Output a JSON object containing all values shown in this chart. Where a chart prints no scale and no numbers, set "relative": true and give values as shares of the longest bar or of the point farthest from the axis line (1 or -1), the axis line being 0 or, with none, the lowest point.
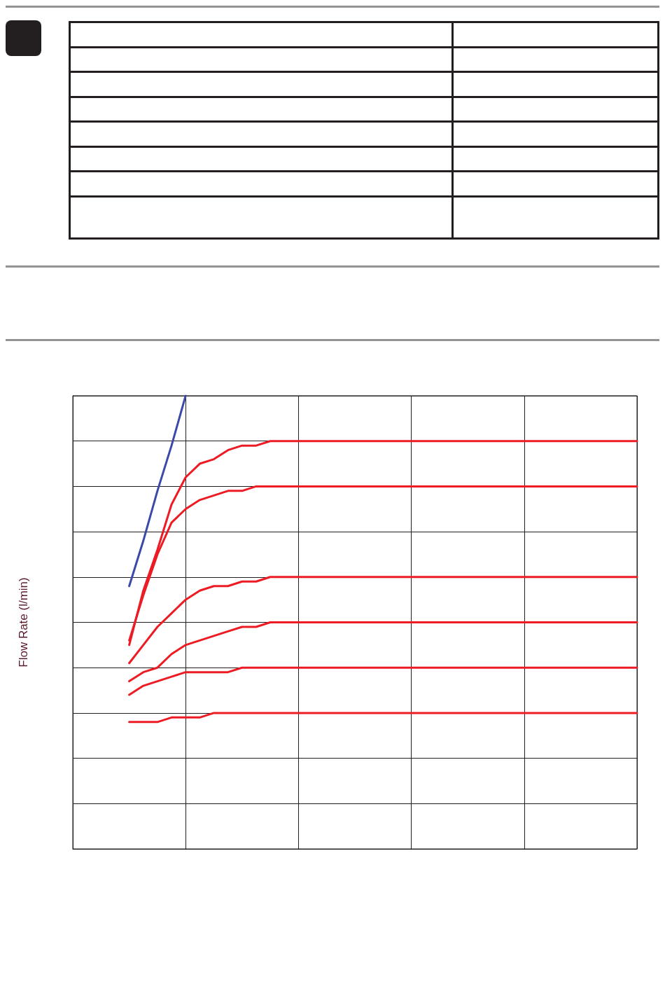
{
  "chart_data": {
    "type": "line",
    "ylabel": "Flow Rate (l/min)",
    "relative": true,
    "grid": true,
    "marker": "none",
    "line_style": "solid",
    "categories": [
      null,
      null,
      null,
      null,
      null,
      null,
      null,
      null,
      null,
      null,
      null,
      null,
      null,
      null,
      null,
      null,
      null,
      null,
      null,
      null,
      null,
      null,
      null,
      null,
      null,
      null,
      null,
      null,
      null,
      null,
      null,
      null,
      null,
      null,
      null,
      null,
      null,
      null,
      null,
      null,
      null
    ],
    "series": [
      {
        "color": "#3b4aa8",
        "values": [
          null,
          null,
          null,
          null,
          0.58,
          0.68,
          0.79,
          0.89,
          1,
          null,
          null,
          null,
          null,
          null,
          null,
          null,
          null,
          null,
          null,
          null,
          null,
          null,
          null,
          null,
          null,
          null,
          null,
          null,
          null,
          null,
          null,
          null,
          null,
          null,
          null,
          null,
          null,
          null,
          null,
          null,
          null
        ]
      },
      {
        "color": "#ed1c24",
        "values": [
          null,
          null,
          null,
          null,
          0.45,
          0.57,
          0.66,
          0.76,
          0.82,
          0.85,
          0.86,
          0.88,
          0.89,
          0.89,
          0.9,
          0.9,
          0.9,
          0.9,
          0.9,
          0.9,
          0.9,
          0.9,
          0.9,
          0.9,
          0.9,
          0.9,
          0.9,
          0.9,
          0.9,
          0.9,
          0.9,
          0.9,
          0.9,
          0.9,
          0.9,
          0.9,
          0.9,
          0.9,
          0.9,
          0.9,
          0.9
        ]
      },
      {
        "color": "#ed1c24",
        "values": [
          null,
          null,
          null,
          null,
          0.46,
          0.56,
          0.65,
          0.72,
          0.75,
          0.77,
          0.78,
          0.79,
          0.79,
          0.8,
          0.8,
          0.8,
          0.8,
          0.8,
          0.8,
          0.8,
          0.8,
          0.8,
          0.8,
          0.8,
          0.8,
          0.8,
          0.8,
          0.8,
          0.8,
          0.8,
          0.8,
          0.8,
          0.8,
          0.8,
          0.8,
          0.8,
          0.8,
          0.8,
          0.8,
          0.8,
          0.8
        ]
      },
      {
        "color": "#ed1c24",
        "values": [
          null,
          null,
          null,
          null,
          0.41,
          0.45,
          0.49,
          0.52,
          0.55,
          0.57,
          0.58,
          0.58,
          0.59,
          0.59,
          0.6,
          0.6,
          0.6,
          0.6,
          0.6,
          0.6,
          0.6,
          0.6,
          0.6,
          0.6,
          0.6,
          0.6,
          0.6,
          0.6,
          0.6,
          0.6,
          0.6,
          0.6,
          0.6,
          0.6,
          0.6,
          0.6,
          0.6,
          0.6,
          0.6,
          0.6,
          0.6
        ]
      },
      {
        "color": "#ed1c24",
        "values": [
          null,
          null,
          null,
          null,
          0.37,
          0.39,
          0.4,
          0.43,
          0.45,
          0.46,
          0.47,
          0.48,
          0.49,
          0.49,
          0.5,
          0.5,
          0.5,
          0.5,
          0.5,
          0.5,
          0.5,
          0.5,
          0.5,
          0.5,
          0.5,
          0.5,
          0.5,
          0.5,
          0.5,
          0.5,
          0.5,
          0.5,
          0.5,
          0.5,
          0.5,
          0.5,
          0.5,
          0.5,
          0.5,
          0.5,
          0.5
        ]
      },
      {
        "color": "#ed1c24",
        "values": [
          null,
          null,
          null,
          null,
          0.34,
          0.36,
          0.37,
          0.38,
          0.39,
          0.39,
          0.39,
          0.39,
          0.4,
          0.4,
          0.4,
          0.4,
          0.4,
          0.4,
          0.4,
          0.4,
          0.4,
          0.4,
          0.4,
          0.4,
          0.4,
          0.4,
          0.4,
          0.4,
          0.4,
          0.4,
          0.4,
          0.4,
          0.4,
          0.4,
          0.4,
          0.4,
          0.4,
          0.4,
          0.4,
          0.4,
          0.4
        ]
      },
      {
        "color": "#ed1c24",
        "values": [
          null,
          null,
          null,
          null,
          0.28,
          0.28,
          0.28,
          0.29,
          0.29,
          0.29,
          0.3,
          0.3,
          0.3,
          0.3,
          0.3,
          0.3,
          0.3,
          0.3,
          0.3,
          0.3,
          0.3,
          0.3,
          0.3,
          0.3,
          0.3,
          0.3,
          0.3,
          0.3,
          0.3,
          0.3,
          0.3,
          0.3,
          0.3,
          0.3,
          0.3,
          0.3,
          0.3,
          0.3,
          0.3,
          0.3,
          0.3
        ]
      }
    ]
  }
}
